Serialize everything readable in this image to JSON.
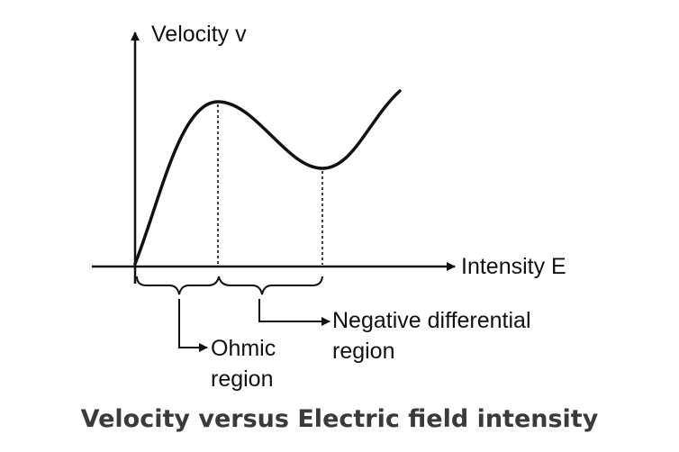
{
  "labels": {
    "y_axis": "Velocity v",
    "x_axis": "Intensity E",
    "ohmic_line1": "Ohmic",
    "ohmic_line2": "region",
    "ndr_line1": "Negative differential",
    "ndr_line2": "region"
  },
  "caption": "Velocity versus Electric field intensity",
  "colors": {
    "ink": "#111111",
    "caption": "#3a3a3a",
    "background": "#ffffff"
  }
}
